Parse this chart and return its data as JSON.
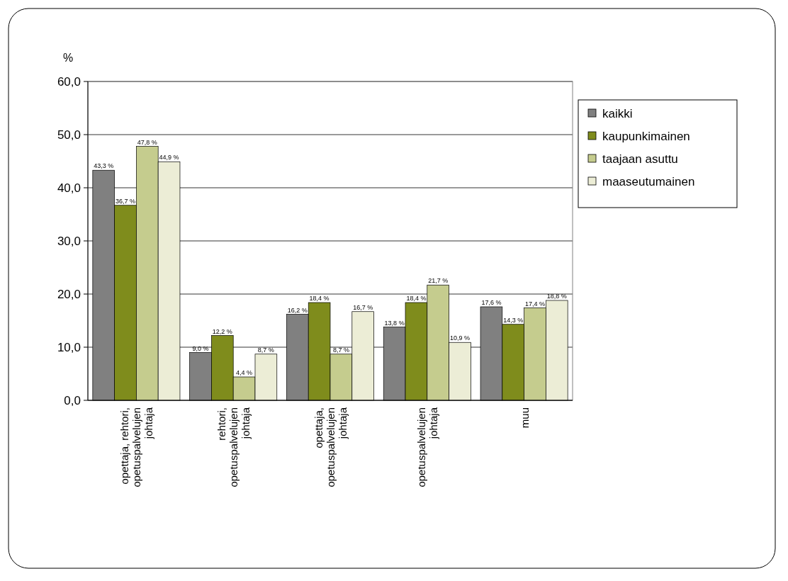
{
  "chart_data": {
    "type": "bar",
    "ylabel": "%",
    "categories": [
      "opettaja, rehtori, opetuspalvelujen johtaja",
      "rehtori, opetuspalvelujen johtaja",
      "opettaja, opetuspalvelujen johtaja",
      "opetuspalvelujen johtaja",
      "muu"
    ],
    "series": [
      {
        "name": "kaikki",
        "color": "#808080",
        "values": [
          43.3,
          9.0,
          16.2,
          13.8,
          17.6
        ],
        "value_labels": [
          "43,3 %",
          "9,0 %",
          "16,2 %",
          "13,8 %",
          "17,6 %"
        ]
      },
      {
        "name": "kaupunkimainen",
        "color": "#7f8c1c",
        "values": [
          36.7,
          12.2,
          18.4,
          18.4,
          14.3
        ],
        "value_labels": [
          "36,7 %",
          "12,2 %",
          "18,4 %",
          "18,4 %",
          "14,3 %"
        ]
      },
      {
        "name": "taajaan asuttu",
        "color": "#c5cc8e",
        "values": [
          47.8,
          4.4,
          8.7,
          21.7,
          17.4
        ],
        "value_labels": [
          "47,8 %",
          "4,4 %",
          "8,7 %",
          "21,7 %",
          "17,4 %"
        ]
      },
      {
        "name": "maaseutumainen",
        "color": "#ecedd6",
        "values": [
          44.9,
          8.7,
          16.7,
          10.9,
          18.8
        ],
        "value_labels": [
          "44,9 %",
          "8,7 %",
          "16,7 %",
          "10,9 %",
          "18,8 %"
        ]
      }
    ],
    "ylim": [
      0,
      60
    ],
    "yticks": [
      {
        "value": 0,
        "label": "0,0"
      },
      {
        "value": 10,
        "label": "10,0"
      },
      {
        "value": 20,
        "label": "20,0"
      },
      {
        "value": 30,
        "label": "30,0"
      },
      {
        "value": 40,
        "label": "40,0"
      },
      {
        "value": 50,
        "label": "50,0"
      },
      {
        "value": 60,
        "label": "60,0"
      }
    ],
    "grid": "y",
    "legend": "right"
  }
}
